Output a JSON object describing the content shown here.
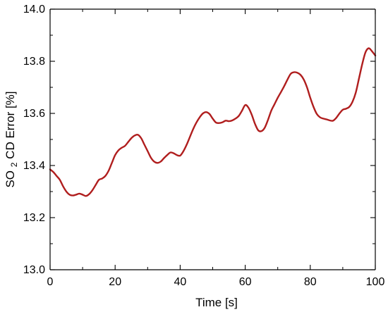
{
  "chart_data": {
    "type": "line",
    "title": "",
    "xlabel": "Time [s]",
    "ylabel_parts": {
      "prefix": "SO",
      "subscript": "2",
      "suffix": " CD Error [%]"
    },
    "xlim": [
      0,
      100
    ],
    "ylim": [
      13.0,
      14.0
    ],
    "x_ticks": [
      0,
      20,
      40,
      60,
      80,
      100
    ],
    "x_tick_labels": [
      "0",
      "20",
      "40",
      "60",
      "80",
      "100"
    ],
    "y_ticks": [
      13.0,
      13.2,
      13.4,
      13.6,
      13.8,
      14.0
    ],
    "y_tick_labels": [
      "13.0",
      "13.2",
      "13.4",
      "13.6",
      "13.8",
      "14.0"
    ],
    "grid": false,
    "legend": "none",
    "series": [
      {
        "color": "#b01e1e",
        "x": [
          0,
          1,
          2,
          3,
          4,
          5,
          6,
          7,
          8,
          9,
          10,
          11,
          12,
          13,
          14,
          15,
          16,
          17,
          18,
          19,
          20,
          21,
          22,
          23,
          24,
          25,
          26,
          27,
          28,
          29,
          30,
          31,
          32,
          33,
          34,
          35,
          36,
          37,
          38,
          39,
          40,
          41,
          42,
          43,
          44,
          45,
          46,
          47,
          48,
          49,
          50,
          51,
          52,
          53,
          54,
          55,
          56,
          57,
          58,
          59,
          60,
          61,
          62,
          63,
          64,
          65,
          66,
          67,
          68,
          69,
          70,
          71,
          72,
          73,
          74,
          75,
          76,
          77,
          78,
          79,
          80,
          81,
          82,
          83,
          84,
          85,
          86,
          87,
          88,
          89,
          90,
          91,
          92,
          93,
          94,
          95,
          96,
          97,
          98,
          99,
          100
        ],
        "y": [
          13.385,
          13.375,
          13.36,
          13.345,
          13.32,
          13.3,
          13.288,
          13.285,
          13.288,
          13.292,
          13.288,
          13.283,
          13.29,
          13.305,
          13.325,
          13.345,
          13.35,
          13.36,
          13.38,
          13.41,
          13.44,
          13.458,
          13.468,
          13.475,
          13.49,
          13.505,
          13.515,
          13.518,
          13.505,
          13.48,
          13.455,
          13.43,
          13.415,
          13.41,
          13.415,
          13.428,
          13.44,
          13.45,
          13.447,
          13.44,
          13.438,
          13.455,
          13.48,
          13.51,
          13.54,
          13.565,
          13.585,
          13.6,
          13.605,
          13.598,
          13.58,
          13.565,
          13.563,
          13.566,
          13.572,
          13.57,
          13.573,
          13.58,
          13.59,
          13.61,
          13.632,
          13.622,
          13.595,
          13.56,
          13.535,
          13.532,
          13.545,
          13.575,
          13.61,
          13.635,
          13.66,
          13.682,
          13.705,
          13.73,
          13.752,
          13.758,
          13.756,
          13.748,
          13.73,
          13.7,
          13.66,
          13.625,
          13.598,
          13.585,
          13.58,
          13.577,
          13.573,
          13.572,
          13.583,
          13.6,
          13.614,
          13.618,
          13.625,
          13.645,
          13.68,
          13.735,
          13.79,
          13.835,
          13.85,
          13.838,
          13.822
        ]
      }
    ]
  }
}
